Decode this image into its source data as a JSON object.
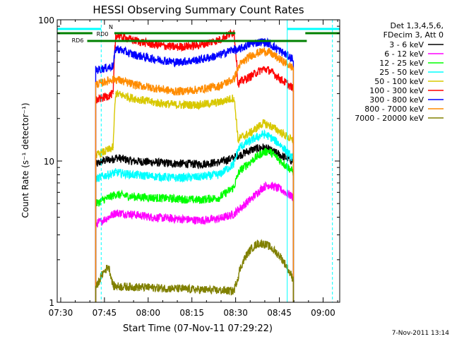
{
  "chart_data": {
    "type": "line",
    "title": "HESSI Observing Summary Count Rates",
    "xlabel": "Start Time (07-Nov-11 07:29:22)",
    "ylabel": "Count Rate (s⁻¹ detector⁻¹)",
    "x_ticks": [
      "07:30",
      "07:45",
      "08:00",
      "08:15",
      "08:30",
      "08:45",
      "09:00"
    ],
    "x_range_minutes": [
      -0.6,
      96.3
    ],
    "y_ticks": [
      "1",
      "10",
      "100"
    ],
    "y_scale": "log",
    "ylim": [
      1,
      100
    ],
    "legend_title": [
      "Det 1,3,4,5,6,",
      "FDecim 3, Att 0"
    ],
    "legend_position": "right",
    "footer": "7-Nov-2011 13:14",
    "data_start_min": 12.6,
    "data_end_min": 80.4,
    "gap_start_min": 18.6,
    "gap_end_min": 61.4,
    "series": [
      {
        "name": "3 - 6 keV",
        "color": "#000000",
        "x": [
          13,
          15,
          17,
          18.6,
          19.5,
          25,
          32,
          40,
          48,
          55,
          60,
          61.4,
          62,
          66,
          70,
          72,
          76,
          80
        ],
        "y": [
          9.5,
          10,
          10.2,
          10.3,
          10.6,
          10,
          9.8,
          9.6,
          9.5,
          9.8,
          10.5,
          11,
          11,
          12,
          12.5,
          12,
          11,
          10
        ]
      },
      {
        "name": "6 - 12 keV",
        "color": "#ff00ff",
        "x": [
          13,
          15,
          17,
          18.6,
          19.5,
          25,
          32,
          40,
          48,
          55,
          60,
          61.4,
          62,
          66,
          70,
          72,
          76,
          80
        ],
        "y": [
          3.6,
          3.8,
          4,
          4.2,
          4.3,
          4.2,
          4,
          3.9,
          3.8,
          3.9,
          4.2,
          4.5,
          4.6,
          5.4,
          6.5,
          6.8,
          6.3,
          5.6
        ]
      },
      {
        "name": "12 - 25 keV",
        "color": "#00ff00",
        "x": [
          13,
          15,
          17,
          18.6,
          19.5,
          25,
          32,
          40,
          48,
          55,
          60,
          61.4,
          62,
          66,
          70,
          72,
          76,
          80
        ],
        "y": [
          5,
          5.3,
          5.5,
          5.7,
          5.8,
          5.6,
          5.5,
          5.4,
          5.3,
          5.5,
          6.5,
          8,
          8.5,
          10,
          11.5,
          11.8,
          10,
          8.5
        ]
      },
      {
        "name": "25 - 50 keV",
        "color": "#00ffff",
        "x": [
          13,
          15,
          17,
          18.6,
          19.5,
          25,
          32,
          40,
          48,
          55,
          60,
          61.4,
          62,
          66,
          70,
          72,
          76,
          80
        ],
        "y": [
          7.5,
          7.8,
          8,
          8.2,
          8.3,
          8,
          7.8,
          7.6,
          7.7,
          8,
          9.5,
          12,
          12.5,
          14,
          15.5,
          15,
          13,
          10.5
        ]
      },
      {
        "name": "50 - 100 keV",
        "color": "#d8c800",
        "x": [
          13,
          15,
          17,
          18.6,
          19.5,
          25,
          32,
          40,
          48,
          55,
          60,
          61.4,
          62,
          66,
          70,
          72,
          76,
          80
        ],
        "y": [
          11,
          11.5,
          12,
          12.5,
          30,
          28,
          26,
          25,
          25,
          26,
          28,
          14,
          14.5,
          16,
          18.5,
          18,
          16,
          14
        ]
      },
      {
        "name": "100 - 300 keV",
        "color": "#ff0000",
        "x": [
          13,
          15,
          17,
          18.6,
          19.5,
          25,
          32,
          40,
          48,
          55,
          60,
          61.4,
          62,
          66,
          70,
          72,
          76,
          80
        ],
        "y": [
          27,
          28,
          29,
          30,
          78,
          72,
          67,
          64,
          66,
          72,
          82,
          35,
          36,
          40,
          45,
          44,
          38,
          33
        ]
      },
      {
        "name": "300 - 800 keV",
        "color": "#0000ff",
        "x": [
          13,
          15,
          17,
          18.6,
          19.5,
          25,
          32,
          40,
          48,
          55,
          60,
          61.4,
          62,
          66,
          70,
          72,
          76,
          80
        ],
        "y": [
          44,
          45,
          46,
          47,
          63,
          57,
          53,
          50,
          52,
          56,
          62,
          60,
          62,
          68,
          70,
          68,
          60,
          53
        ]
      },
      {
        "name": "800 - 7000 keV",
        "color": "#ff8c00",
        "x": [
          13,
          15,
          17,
          18.6,
          19.5,
          25,
          32,
          40,
          48,
          55,
          60,
          61.4,
          62,
          66,
          70,
          72,
          76,
          80
        ],
        "y": [
          35,
          36,
          37,
          38,
          38,
          35,
          33,
          31,
          32,
          34,
          38,
          45,
          48,
          56,
          60,
          59,
          52,
          46
        ]
      },
      {
        "name": "7000 - 20000 keV",
        "color": "#808000",
        "x": [
          13,
          15,
          17,
          18.6,
          60,
          61.4,
          62,
          64,
          66,
          68,
          70,
          72,
          74,
          76,
          78,
          80
        ],
        "y": [
          1.3,
          1.6,
          1.8,
          1.3,
          1.2,
          1.5,
          1.7,
          2.1,
          2.4,
          2.6,
          2.6,
          2.5,
          2.3,
          2.1,
          1.8,
          1.5
        ]
      }
    ],
    "flags": [
      {
        "label": "N",
        "color": "#00ffff",
        "segments": [
          [
            -0.6,
            14.5
          ],
          [
            78.3,
            96.3
          ]
        ]
      },
      {
        "label": "RD0",
        "color": "#008000",
        "segments": [
          [
            -0.6,
            11.5
          ],
          [
            19,
            60.5
          ],
          [
            84.5,
            96.3
          ]
        ]
      },
      {
        "label": "RD6",
        "color": "#008000",
        "segments": [
          [
            9.7,
            85
          ]
        ]
      }
    ],
    "vertical_markers": [
      {
        "x": 14.5,
        "style": "dashed",
        "color": "#00ffff"
      },
      {
        "x": 78.3,
        "style": "solid",
        "color": "#00ffff"
      },
      {
        "x": 93.8,
        "style": "dashed",
        "color": "#00ffff"
      }
    ]
  }
}
